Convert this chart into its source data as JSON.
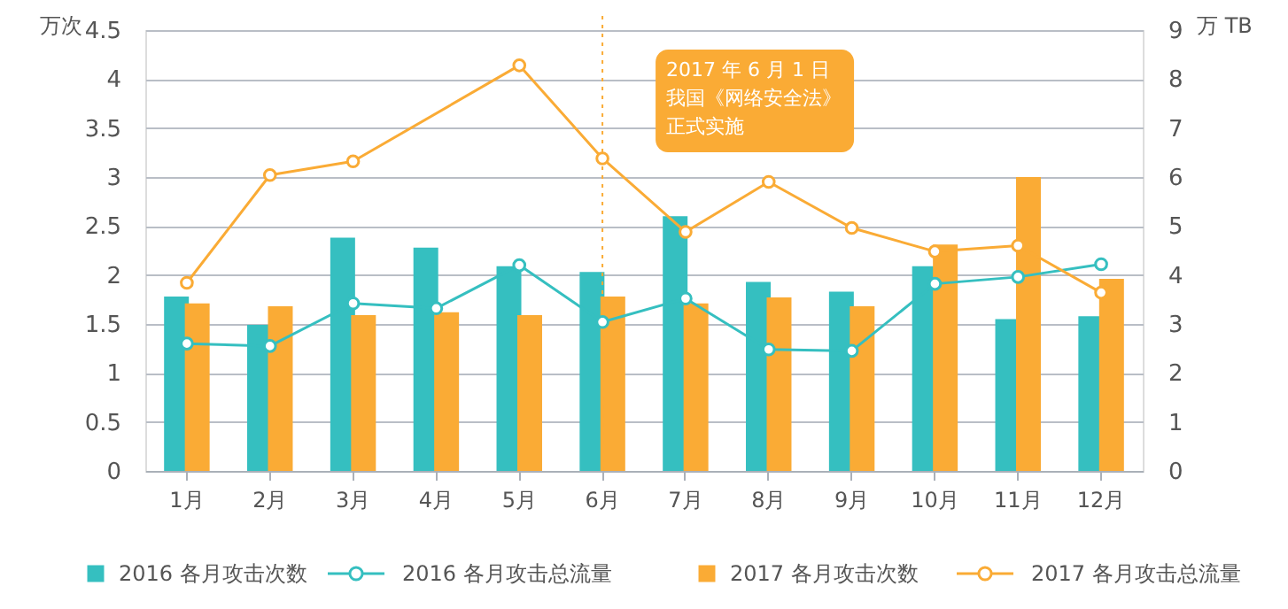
{
  "chart_data": {
    "type": "bar",
    "categories": [
      "1月",
      "2月",
      "3月",
      "4月",
      "5月",
      "6月",
      "7月",
      "8月",
      "9月",
      "10月",
      "11月",
      "12月"
    ],
    "ylabel": "万次",
    "y2label": "万 TB",
    "ylim": [
      0,
      4.5
    ],
    "yticks": [
      0,
      0.5,
      1,
      1.5,
      2,
      2.5,
      3,
      3.5,
      4,
      4.5
    ],
    "y2lim": [
      0,
      9
    ],
    "y2ticks": [
      0,
      1,
      2,
      3,
      4,
      5,
      6,
      7,
      8,
      9
    ],
    "series": [
      {
        "name": "2016 各月攻击次数",
        "type": "bar",
        "color": "#35bfc0",
        "values": [
          1.78,
          1.49,
          2.38,
          2.28,
          2.09,
          2.03,
          2.6,
          1.93,
          1.83,
          2.09,
          1.55,
          1.58
        ]
      },
      {
        "name": "2016 各月攻击总流量",
        "type": "line",
        "axis": "y2",
        "color": "#35bfc0",
        "values": [
          2.6,
          2.55,
          3.42,
          3.32,
          4.2,
          3.04,
          3.52,
          2.48,
          2.45,
          3.82,
          3.96,
          4.22
        ]
      },
      {
        "name": "2017 各月攻击次数",
        "type": "bar",
        "color": "#faab35",
        "values": [
          1.71,
          1.68,
          1.59,
          1.62,
          1.59,
          1.78,
          1.71,
          1.77,
          1.68,
          2.31,
          3.0,
          1.96
        ]
      },
      {
        "name": "2017 各月攻击总流量",
        "type": "line",
        "axis": "y2",
        "color": "#faab35",
        "values": [
          3.84,
          6.04,
          6.32,
          null,
          8.28,
          6.38,
          4.88,
          5.9,
          4.96,
          4.48,
          4.6,
          3.64
        ]
      }
    ],
    "ref_lines": [
      {
        "axis": "x",
        "value": "6月",
        "color": "#faab35",
        "line_style": "dotted"
      }
    ],
    "annotations": [
      "2017 年 6 月 1 日我国《网络安全法》正式实施"
    ],
    "grid": "y",
    "legend": "bottom",
    "marker": "circle",
    "line_style": "solid"
  }
}
